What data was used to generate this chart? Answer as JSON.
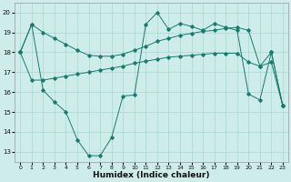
{
  "xlabel": "Humidex (Indice chaleur)",
  "x": [
    0,
    1,
    2,
    3,
    4,
    5,
    6,
    7,
    8,
    9,
    10,
    11,
    12,
    13,
    14,
    15,
    16,
    17,
    18,
    19,
    20,
    21,
    22,
    23
  ],
  "line_top": [
    18,
    19.4,
    19.0,
    18.7,
    18.4,
    18.1,
    17.85,
    17.8,
    17.8,
    17.9,
    18.1,
    18.3,
    18.55,
    18.7,
    18.85,
    18.95,
    19.05,
    19.1,
    19.2,
    19.25,
    19.1,
    17.3,
    18.0,
    15.3
  ],
  "line_mid": [
    18,
    16.6,
    16.6,
    16.7,
    16.8,
    16.9,
    17.0,
    17.1,
    17.2,
    17.3,
    17.45,
    17.55,
    17.65,
    17.75,
    17.8,
    17.85,
    17.9,
    17.95,
    17.95,
    17.95,
    17.5,
    17.3,
    17.5,
    15.3
  ],
  "line_bot": [
    18,
    19.4,
    16.1,
    15.5,
    15.0,
    13.6,
    12.8,
    12.8,
    13.7,
    15.8,
    15.85,
    19.4,
    20.0,
    19.15,
    19.45,
    19.3,
    19.1,
    19.45,
    19.25,
    19.1,
    15.9,
    15.6,
    18.0,
    15.3
  ],
  "line_color": "#1a7a6e",
  "bg_color": "#ceecea",
  "grid_color": "#aad6d2",
  "ylim": [
    12.5,
    20.5
  ],
  "xlim": [
    -0.5,
    23.5
  ],
  "yticks": [
    13,
    14,
    15,
    16,
    17,
    18,
    19,
    20
  ],
  "xticks": [
    0,
    1,
    2,
    3,
    4,
    5,
    6,
    7,
    8,
    9,
    10,
    11,
    12,
    13,
    14,
    15,
    16,
    17,
    18,
    19,
    20,
    21,
    22,
    23
  ]
}
